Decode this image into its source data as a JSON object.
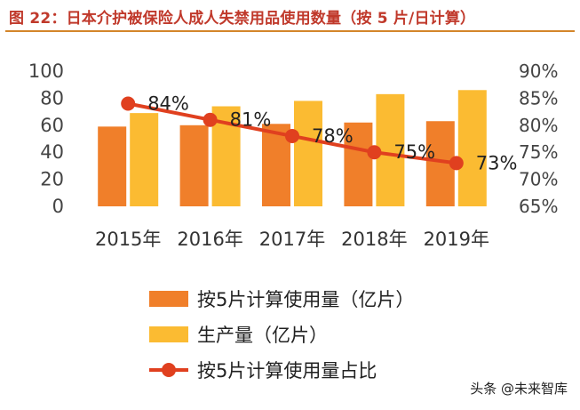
{
  "title": "图 22：日本介护被保险人成人失禁用品使用数量（按 5 片/日计算）",
  "watermark": "头条 @未来智库",
  "colors": {
    "bar1": "#f07f2a",
    "bar2": "#fbbb32",
    "line": "#e0401f",
    "title": "#c0392b",
    "rule": "#d4862a"
  },
  "chart_data": {
    "type": "bar",
    "categories": [
      "2015年",
      "2016年",
      "2017年",
      "2018年",
      "2019年"
    ],
    "y_left": {
      "ticks": [
        "0",
        "20",
        "40",
        "60",
        "80",
        "100"
      ],
      "ylim": [
        0,
        100
      ]
    },
    "y_right": {
      "ticks": [
        "65%",
        "70%",
        "75%",
        "80%",
        "85%",
        "90%"
      ],
      "ylim": [
        65,
        90
      ]
    },
    "series": [
      {
        "name": "按5片计算使用量（亿片）",
        "type": "bar",
        "axis": "left",
        "values": [
          59,
          60,
          61,
          62,
          63
        ]
      },
      {
        "name": "生产量（亿片）",
        "type": "bar",
        "axis": "left",
        "values": [
          69,
          74,
          78,
          83,
          86
        ]
      },
      {
        "name": "按5片计算使用量占比",
        "type": "line",
        "axis": "right",
        "values": [
          84,
          81,
          78,
          75,
          73
        ],
        "labels": [
          "84%",
          "81%",
          "78%",
          "75%",
          "73%"
        ]
      }
    ],
    "grid": false,
    "legend": "bottom"
  }
}
